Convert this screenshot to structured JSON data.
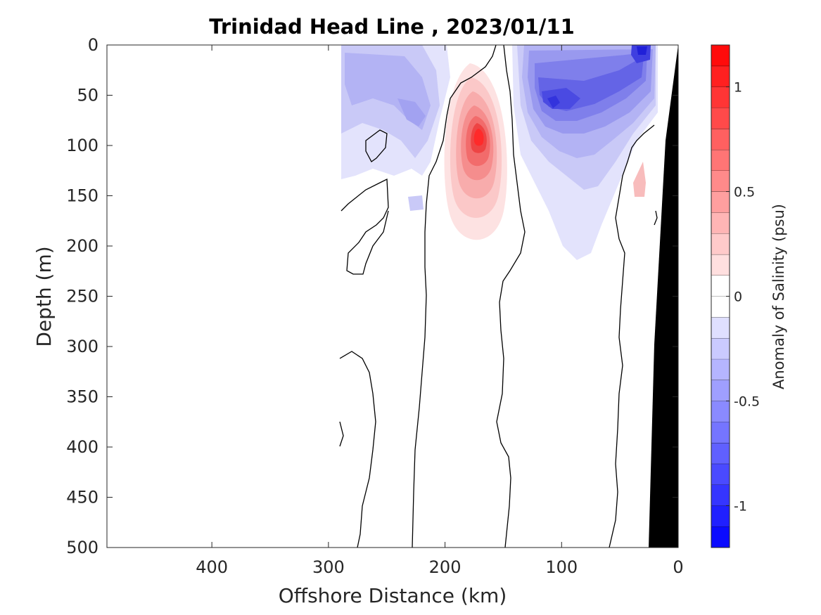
{
  "chart_data": {
    "type": "contour",
    "title": "Trinidad Head Line , 2023/01/11",
    "xlabel": "Offshore Distance (km)",
    "ylabel": "Depth (m)",
    "xlim": [
      490,
      0
    ],
    "ylim": [
      0,
      500
    ],
    "x_ticks": [
      400,
      300,
      200,
      100,
      0
    ],
    "y_ticks": [
      0,
      50,
      100,
      150,
      200,
      250,
      300,
      350,
      400,
      450,
      500
    ],
    "colorbar": {
      "label": "Anomaly of Salinity (psu)",
      "range": [
        -1.2,
        1.2
      ],
      "step": 0.1,
      "ticks": [
        1,
        0.5,
        0,
        -0.5,
        -1
      ],
      "tick_labels": [
        "1",
        "0.5",
        "0",
        "-0.5",
        "-1"
      ],
      "colormap": "blue-white-red"
    },
    "features": [
      {
        "name": "high salinity core",
        "center_km": 172,
        "center_depth_m": 85,
        "peak_anomaly": 0.9
      },
      {
        "name": "low salinity core",
        "center_km": 112,
        "center_depth_m": 60,
        "peak_anomaly": -0.9
      },
      {
        "name": "surface low",
        "center_km": 35,
        "center_depth_m": 8,
        "peak_anomaly": -0.8
      },
      {
        "name": "offshore low",
        "center_km": 240,
        "center_depth_m": 70,
        "peak_anomaly": -0.3
      },
      {
        "name": "data coverage",
        "x_range_km": [
          290,
          20
        ]
      }
    ]
  }
}
